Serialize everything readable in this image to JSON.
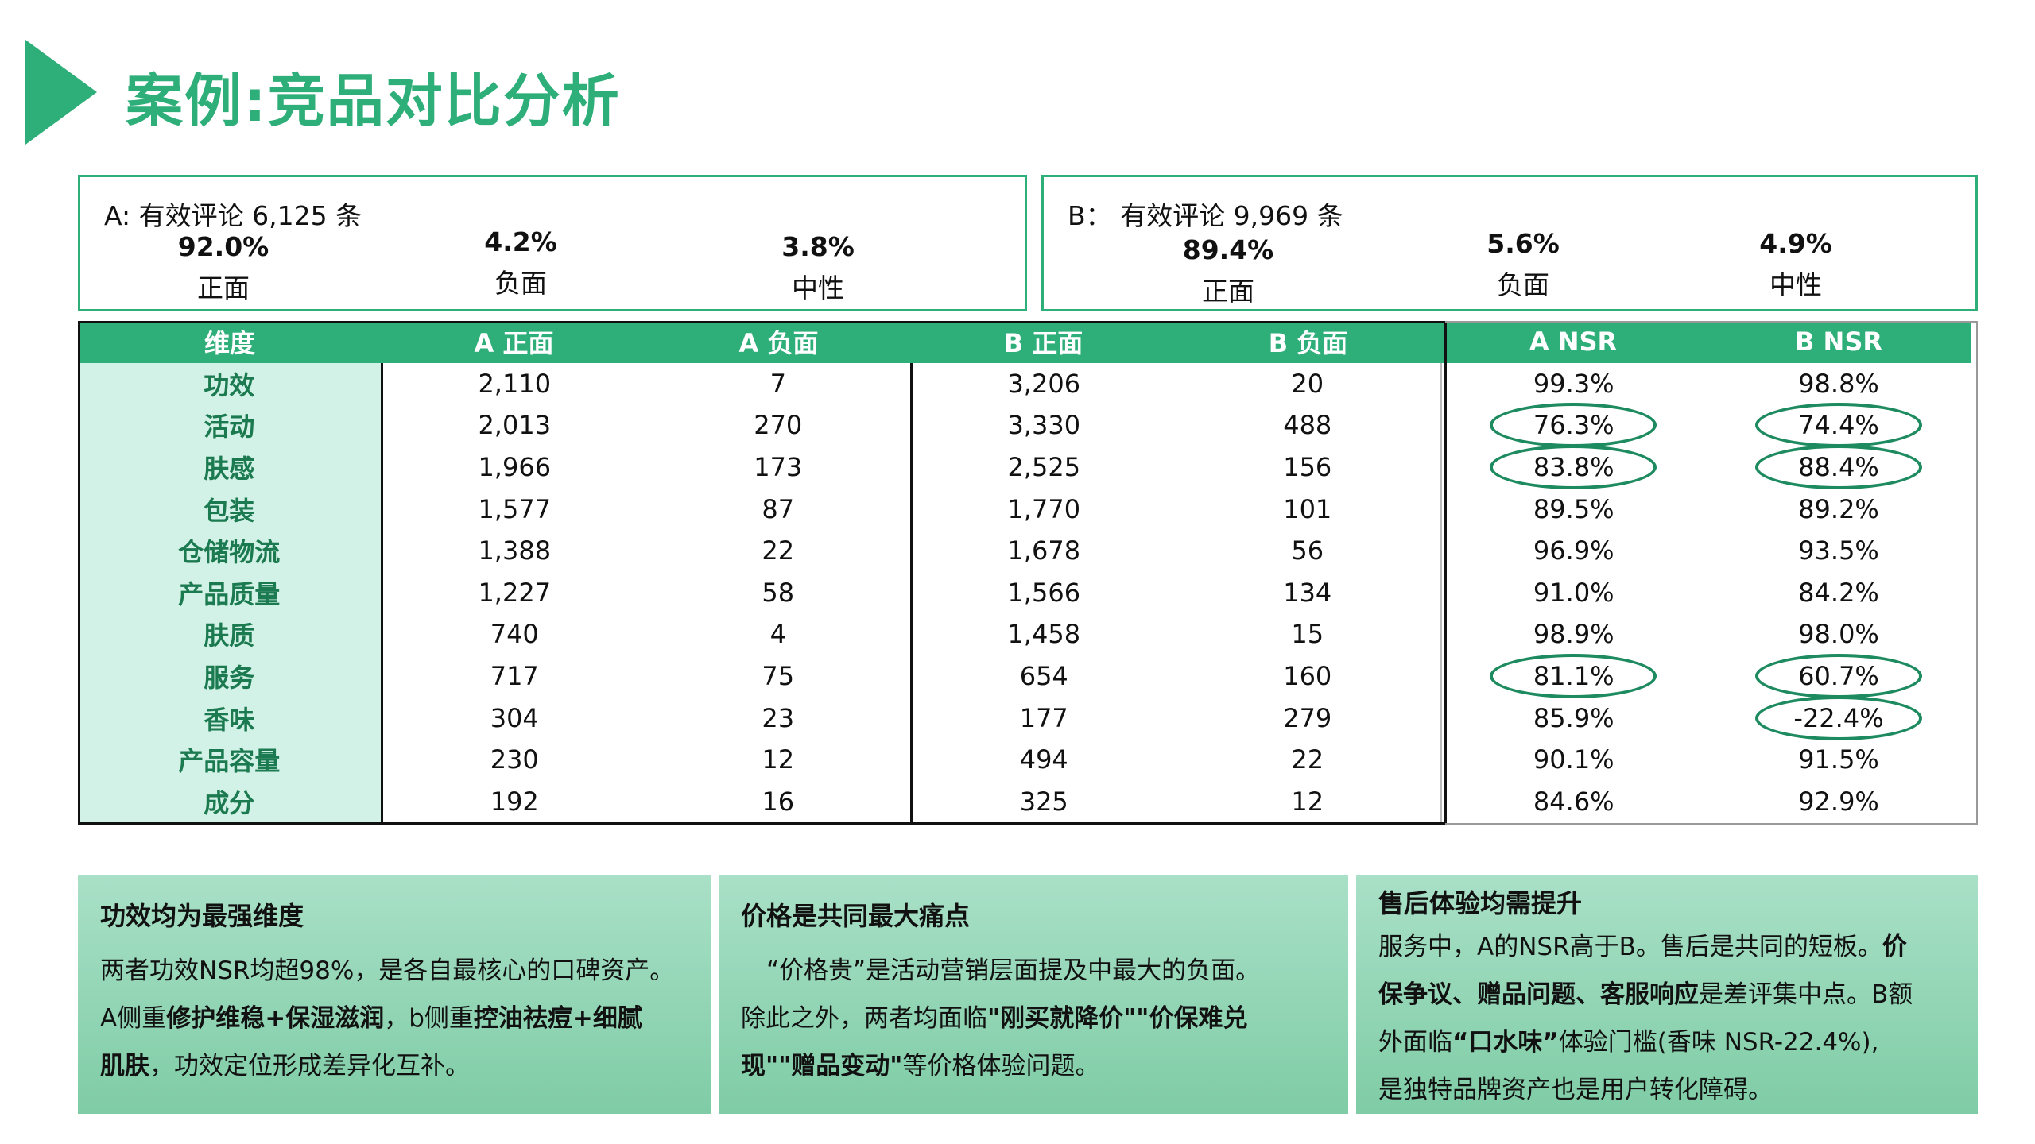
{
  "title": "案例:竞品对比分析",
  "summary_a": {
    "head": "A: 有效评论 6,125 条",
    "metrics": [
      {
        "value": "92.0%",
        "label": "正面"
      },
      {
        "value": "4.2%",
        "label": "负面"
      },
      {
        "value": "3.8%",
        "label": "中性"
      }
    ]
  },
  "summary_b": {
    "head": "B： 有效评论 9,969 条",
    "metrics": [
      {
        "value": "89.4%",
        "label": "正面"
      },
      {
        "value": "5.6%",
        "label": "负面"
      },
      {
        "value": "4.9%",
        "label": "中性"
      }
    ]
  },
  "table": {
    "headers": [
      "维度",
      "A 正面",
      "A 负面",
      "B 正面",
      "B 负面",
      "A NSR",
      "B NSR"
    ],
    "rows": [
      [
        "功效",
        "2,110",
        "7",
        "3,206",
        "20",
        "99.3%",
        "98.8%"
      ],
      [
        "活动",
        "2,013",
        "270",
        "3,330",
        "488",
        "76.3%",
        "74.4%"
      ],
      [
        "肤感",
        "1,966",
        "173",
        "2,525",
        "156",
        "83.8%",
        "88.4%"
      ],
      [
        "包装",
        "1,577",
        "87",
        "1,770",
        "101",
        "89.5%",
        "89.2%"
      ],
      [
        "仓储物流",
        "1,388",
        "22",
        "1,678",
        "56",
        "96.9%",
        "93.5%"
      ],
      [
        "产品质量",
        "1,227",
        "58",
        "1,566",
        "134",
        "91.0%",
        "84.2%"
      ],
      [
        "肤质",
        "740",
        "4",
        "1,458",
        "15",
        "98.9%",
        "98.0%"
      ],
      [
        "服务",
        "717",
        "75",
        "654",
        "160",
        "81.1%",
        "60.7%"
      ],
      [
        "香味",
        "304",
        "23",
        "177",
        "279",
        "85.9%",
        "-22.4%"
      ],
      [
        "产品容量",
        "230",
        "12",
        "494",
        "22",
        "90.1%",
        "91.5%"
      ],
      [
        "成分",
        "192",
        "16",
        "325",
        "12",
        "84.6%",
        "92.9%"
      ]
    ],
    "circled_cells": [
      [
        1,
        5
      ],
      [
        1,
        6
      ],
      [
        2,
        5
      ],
      [
        2,
        6
      ],
      [
        7,
        5
      ],
      [
        7,
        6
      ],
      [
        8,
        6
      ]
    ]
  },
  "cards": [
    {
      "title": "功效均为最强维度",
      "p1": "两者功效NSR均超98%，是各自最核心的口碑资产。",
      "p2a": "A侧重",
      "p2b": "修护维稳+保湿滋润",
      "p2c": "，b侧重",
      "p2d": "控油祛痘+细腻",
      "p3a": "肌肤",
      "p3b": "，功效定位形成差异化互补。"
    },
    {
      "title": "价格是共同最大痛点",
      "p1": "“价格贵”是活动营销层面提及中最大的负面。",
      "p2a": "除此之外，两者均面临",
      "p2b": "\"刚买就降价\"\"价保难兑",
      "p3a": "现\"\"赠品变动\"",
      "p3b": "等价格体验问题。"
    },
    {
      "title": "售后体验均需提升",
      "p1a": "服务中，A的NSR高于B。售后是共同的短板。",
      "p1b": "价",
      "p2a": "保争议、赠品问题、客服响应",
      "p2b": "是差评集中点。B额",
      "p3a": "外面临",
      "p3b": "“口水味”",
      "p3c": "体验门槛(香味 NSR-22.4%),",
      "p4": "是独特品牌资产也是用户转化障碍。"
    }
  ],
  "colors": {
    "accent": "#2eae79",
    "dim_bg": "#d2f2e7",
    "ring": "#1d8a5f"
  }
}
